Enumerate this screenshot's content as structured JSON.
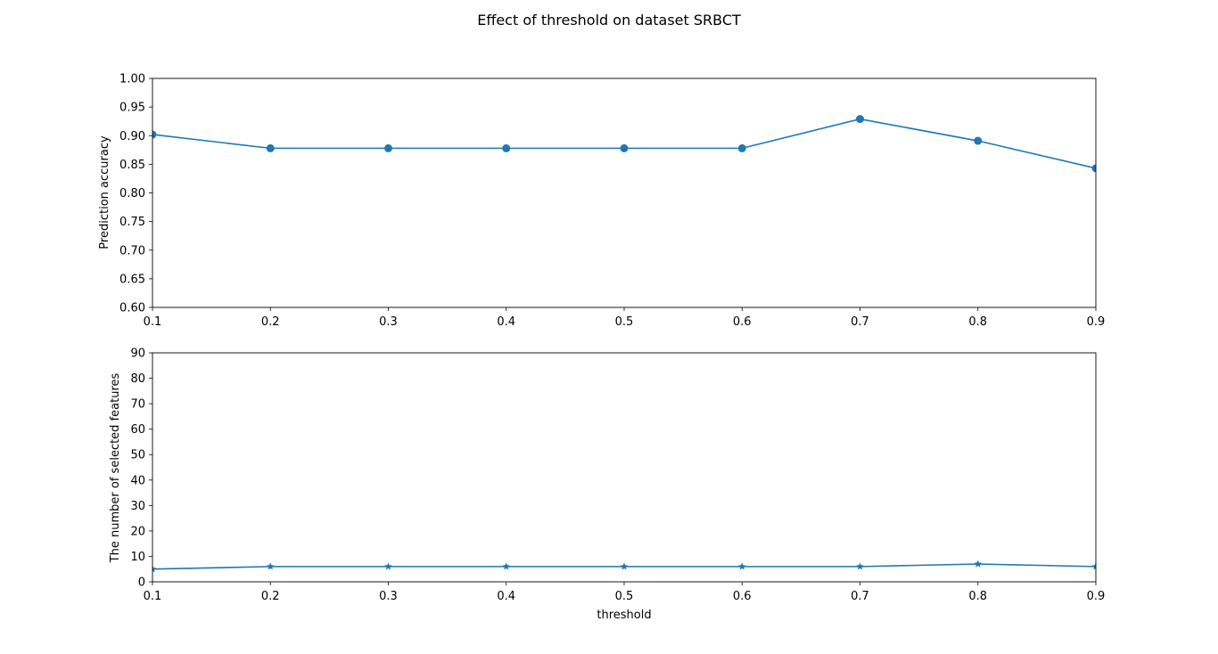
{
  "figure": {
    "suptitle": "Effect of threshold on dataset SRBCT",
    "line_color": "#1f77b4"
  },
  "chart_data": [
    {
      "type": "line",
      "xlabel": "",
      "ylabel": "Prediction accuracy",
      "x": [
        0.1,
        0.2,
        0.3,
        0.4,
        0.5,
        0.6,
        0.7,
        0.8,
        0.9
      ],
      "xticks": [
        "0.1",
        "0.2",
        "0.3",
        "0.4",
        "0.5",
        "0.6",
        "0.7",
        "0.8",
        "0.9"
      ],
      "xlim": [
        0.1,
        0.9
      ],
      "ylim": [
        0.6,
        1.0
      ],
      "yticks": [
        "0.60",
        "0.65",
        "0.70",
        "0.75",
        "0.80",
        "0.85",
        "0.90",
        "0.95",
        "1.00"
      ],
      "marker": "circle",
      "grid": false,
      "series": [
        {
          "values": [
            0.902,
            0.878,
            0.878,
            0.878,
            0.878,
            0.878,
            0.929,
            0.891,
            0.843
          ]
        }
      ]
    },
    {
      "type": "line",
      "xlabel": "threshold",
      "ylabel": "The number of selected features",
      "x": [
        0.1,
        0.2,
        0.3,
        0.4,
        0.5,
        0.6,
        0.7,
        0.8,
        0.9
      ],
      "xticks": [
        "0.1",
        "0.2",
        "0.3",
        "0.4",
        "0.5",
        "0.6",
        "0.7",
        "0.8",
        "0.9"
      ],
      "xlim": [
        0.1,
        0.9
      ],
      "ylim": [
        0,
        90
      ],
      "yticks": [
        "0",
        "10",
        "20",
        "30",
        "40",
        "50",
        "60",
        "70",
        "80",
        "90"
      ],
      "marker": "star",
      "grid": false,
      "series": [
        {
          "values": [
            5,
            6,
            6,
            6,
            6,
            6,
            6,
            7,
            6
          ]
        }
      ]
    }
  ]
}
